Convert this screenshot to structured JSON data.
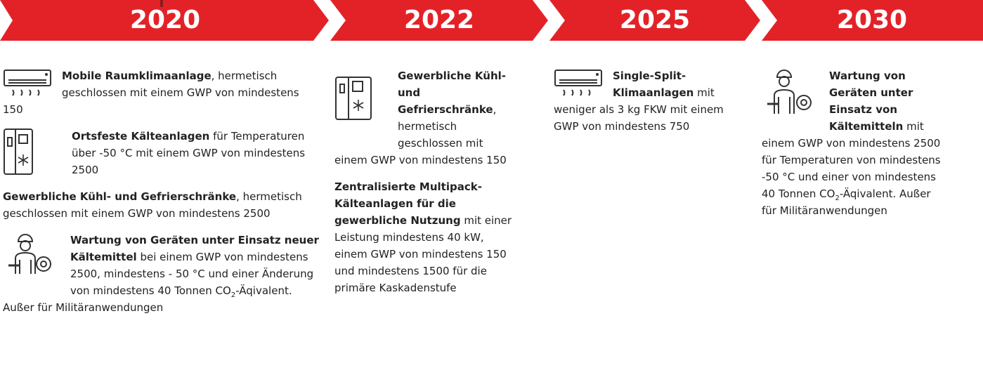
{
  "columns": [
    {
      "year": "2020",
      "items": [
        {
          "parts": [
            "Mobile Raumklimaanlage",
            ", hermetisch geschlossen mit einem GWP von mindestens 150"
          ]
        },
        {
          "parts": [
            "Ortsfeste Kälteanlagen",
            " für Temperaturen über -50 °C mit einem GWP von mindestens 2500"
          ]
        },
        {
          "parts": [
            "Gewerbliche Kühl- und Gefrierschränke",
            ", hermetisch geschlossen mit einem GWP von mindestens 2500"
          ]
        },
        {
          "parts": [
            "Wartung von Geräten unter Einsatz neuer Kältemittel",
            " bei einem GWP von mindestens 2500, mindestens - 50 °C und einer Änderung von mindestens 40 Tonnen CO",
            "2",
            "-Äqivalent. Außer für Militäranwendungen"
          ]
        }
      ]
    },
    {
      "year": "2022",
      "items": [
        {
          "parts": [
            "Gewerbliche Kühl- und Gefrierschränke",
            ", hermetisch geschlossen mit einem GWP von mindestens 150"
          ]
        },
        {
          "parts": [
            "Zentralisierte Multipack-Kälteanlagen für die gewerbliche Nutzung",
            " mit einer Leistung mindestens 40 kW, einem GWP von mindestens 150 und mindestens 1500 für die primäre Kaskadenstufe"
          ]
        }
      ]
    },
    {
      "year": "2025",
      "items": [
        {
          "parts": [
            "Single-Split-Klimaanlagen",
            " mit weniger als 3 kg FKW mit einem GWP von mindestens 750"
          ]
        }
      ]
    },
    {
      "year": "2030",
      "items": [
        {
          "parts": [
            "Wartung von Geräten unter Einsatz von Kältemitteln",
            " mit einem GWP von mindestens 2500 für Temperaturen von mindestens -50 °C und einer von mindestens 40 Tonnen CO",
            "2",
            "-Äqivalent. Außer für Militäranwendungen"
          ]
        }
      ]
    }
  ]
}
